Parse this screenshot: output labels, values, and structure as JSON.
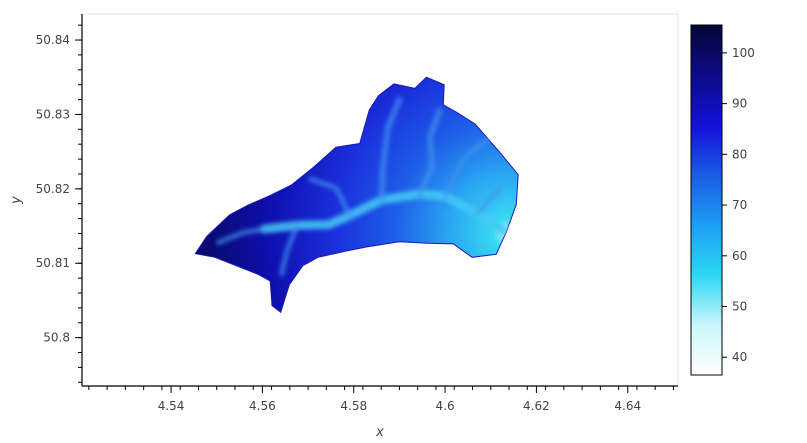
{
  "chart_data": {
    "type": "heatmap",
    "title": "",
    "xlabel": "x",
    "ylabel": "y",
    "xlim": [
      4.5205,
      4.651
    ],
    "ylim": [
      50.7935,
      50.8435
    ],
    "x_ticks": [
      4.54,
      4.56,
      4.58,
      4.6,
      4.62,
      4.64
    ],
    "x_tick_labels": [
      "4.54",
      "4.56",
      "4.58",
      "4.6",
      "4.62",
      "4.64"
    ],
    "y_ticks": [
      50.8,
      50.81,
      50.82,
      50.83,
      50.84
    ],
    "y_tick_labels": [
      "50.8",
      "50.81",
      "50.82",
      "50.83",
      "50.84"
    ],
    "grid": false,
    "colorbar": {
      "range": [
        36.5,
        105.5
      ],
      "ticks": [
        40,
        50,
        60,
        70,
        80,
        90,
        100
      ],
      "tick_labels": [
        "40",
        "50",
        "60",
        "70",
        "80",
        "90",
        "100"
      ],
      "colors": [
        "#ffffff",
        "#caf6fb",
        "#2bd6f3",
        "#1d9ef3",
        "#1a5ce6",
        "#1410d8",
        "#0d0b88",
        "#050535"
      ]
    },
    "watershed_outline": [
      [
        4.5453,
        50.8113
      ],
      [
        4.5478,
        50.8136
      ],
      [
        4.5528,
        50.8165
      ],
      [
        4.5568,
        50.8178
      ],
      [
        4.5617,
        50.8191
      ],
      [
        4.5663,
        50.8205
      ],
      [
        4.5712,
        50.8229
      ],
      [
        4.5761,
        50.8256
      ],
      [
        4.5813,
        50.8261
      ],
      [
        4.5834,
        50.8306
      ],
      [
        4.5854,
        50.8325
      ],
      [
        4.5888,
        50.8341
      ],
      [
        4.5934,
        50.8335
      ],
      [
        4.5959,
        50.835
      ],
      [
        4.5998,
        50.834
      ],
      [
        4.5996,
        50.8313
      ],
      [
        4.6028,
        50.8302
      ],
      [
        4.6066,
        50.8287
      ],
      [
        4.612,
        50.8249
      ],
      [
        4.616,
        50.8219
      ],
      [
        4.6156,
        50.8179
      ],
      [
        4.6134,
        50.8142
      ],
      [
        4.6112,
        50.8112
      ],
      [
        4.6059,
        50.8108
      ],
      [
        4.6018,
        50.8126
      ],
      [
        4.5962,
        50.8127
      ],
      [
        4.59,
        50.8129
      ],
      [
        4.5829,
        50.8122
      ],
      [
        4.5781,
        50.8116
      ],
      [
        4.5722,
        50.8108
      ],
      [
        4.5689,
        50.8097
      ],
      [
        4.5659,
        50.8071
      ],
      [
        4.564,
        50.8034
      ],
      [
        4.5621,
        50.8043
      ],
      [
        4.5617,
        50.8076
      ],
      [
        4.5591,
        50.8085
      ],
      [
        4.5545,
        50.8096
      ],
      [
        4.5496,
        50.8108
      ]
    ],
    "outlet": [
      4.6138,
      50.814
    ],
    "channels": [
      [
        [
          4.6138,
          50.814
        ],
        [
          4.6071,
          50.8167
        ],
        [
          4.6,
          50.819
        ],
        [
          4.5945,
          50.8193
        ],
        [
          4.5861,
          50.8185
        ],
        [
          4.5791,
          50.8164
        ],
        [
          4.5745,
          50.8152
        ],
        [
          4.5676,
          50.8151
        ],
        [
          4.5604,
          50.8146
        ]
      ],
      [
        [
          4.5945,
          50.8193
        ],
        [
          4.5972,
          50.823
        ],
        [
          4.5967,
          50.827
        ],
        [
          4.5988,
          50.8305
        ]
      ],
      [
        [
          4.5861,
          50.8185
        ],
        [
          4.5864,
          50.823
        ],
        [
          4.5875,
          50.8283
        ],
        [
          4.59,
          50.832
        ]
      ],
      [
        [
          4.5791,
          50.8164
        ],
        [
          4.5762,
          50.8201
        ],
        [
          4.5706,
          50.8213
        ]
      ],
      [
        [
          4.5676,
          50.8151
        ],
        [
          4.5654,
          50.8117
        ],
        [
          4.5642,
          50.8086
        ]
      ],
      [
        [
          4.6,
          50.819
        ],
        [
          4.6041,
          50.8242
        ],
        [
          4.6095,
          50.8267
        ]
      ],
      [
        [
          4.6071,
          50.8167
        ],
        [
          4.6124,
          50.8203
        ]
      ],
      [
        [
          4.5604,
          50.8146
        ],
        [
          4.5557,
          50.8141
        ],
        [
          4.5504,
          50.8128
        ]
      ]
    ]
  }
}
